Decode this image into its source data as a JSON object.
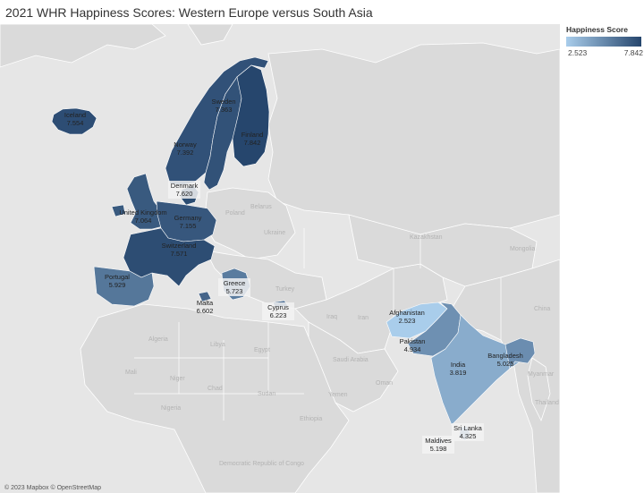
{
  "title": "2021 WHR Happiness Scores: Western Europe versus South Asia",
  "legend": {
    "title": "Happiness Score",
    "min": "2.523",
    "max": "7.842",
    "min_value": 2.523,
    "max_value": 7.842
  },
  "attribution": "© 2023 Mapbox © OpenStreetMap",
  "colors": {
    "low": "#a9cdeb",
    "high": "#26466d",
    "land": "#dcdcdc",
    "water": "#e8e8e8"
  },
  "countries": [
    {
      "id": "iceland",
      "name": "Iceland",
      "score": "7.554",
      "value": 7.554
    },
    {
      "id": "sweden",
      "name": "Sweden",
      "score": "7.363",
      "value": 7.363
    },
    {
      "id": "finland",
      "name": "Finland",
      "score": "7.842",
      "value": 7.842
    },
    {
      "id": "norway",
      "name": "Norway",
      "score": "7.392",
      "value": 7.392
    },
    {
      "id": "denmark",
      "name": "Denmark",
      "score": "7.620",
      "value": 7.62
    },
    {
      "id": "united-kingdom",
      "name": "United Kingdom",
      "score": "7.064",
      "value": 7.064
    },
    {
      "id": "germany",
      "name": "Germany",
      "score": "7.155",
      "value": 7.155
    },
    {
      "id": "switzerland",
      "name": "Switzerland",
      "score": "7.571",
      "value": 7.571
    },
    {
      "id": "portugal",
      "name": "Portugal",
      "score": "5.929",
      "value": 5.929
    },
    {
      "id": "greece",
      "name": "Greece",
      "score": "5.723",
      "value": 5.723
    },
    {
      "id": "malta",
      "name": "Malta",
      "score": "6.602",
      "value": 6.602
    },
    {
      "id": "cyprus",
      "name": "Cyprus",
      "score": "6.223",
      "value": 6.223
    },
    {
      "id": "afghanistan",
      "name": "Afghanistan",
      "score": "2.523",
      "value": 2.523
    },
    {
      "id": "pakistan",
      "name": "Pakistan",
      "score": "4.934",
      "value": 4.934
    },
    {
      "id": "india",
      "name": "India",
      "score": "3.819",
      "value": 3.819
    },
    {
      "id": "bangladesh",
      "name": "Bangladesh",
      "score": "5.025",
      "value": 5.025
    },
    {
      "id": "sri-lanka",
      "name": "Sri Lanka",
      "score": "4.325",
      "value": 4.325
    },
    {
      "id": "maldives",
      "name": "Maldives",
      "score": "5.198",
      "value": 5.198
    }
  ],
  "basemap_labels": [
    "Poland",
    "Belarus",
    "Ukraine",
    "Kazakhstan",
    "Turkey",
    "Iran",
    "Iraq",
    "Algeria",
    "Libya",
    "Egypt",
    "Saudi Arabia",
    "Sudan",
    "Yemen",
    "China",
    "Mongolia",
    "Nigeria",
    "Chad",
    "Niger",
    "Mali",
    "Ethiopia",
    "Oman",
    "Myanmar",
    "Thailand",
    "Democratic Republic of Congo"
  ]
}
